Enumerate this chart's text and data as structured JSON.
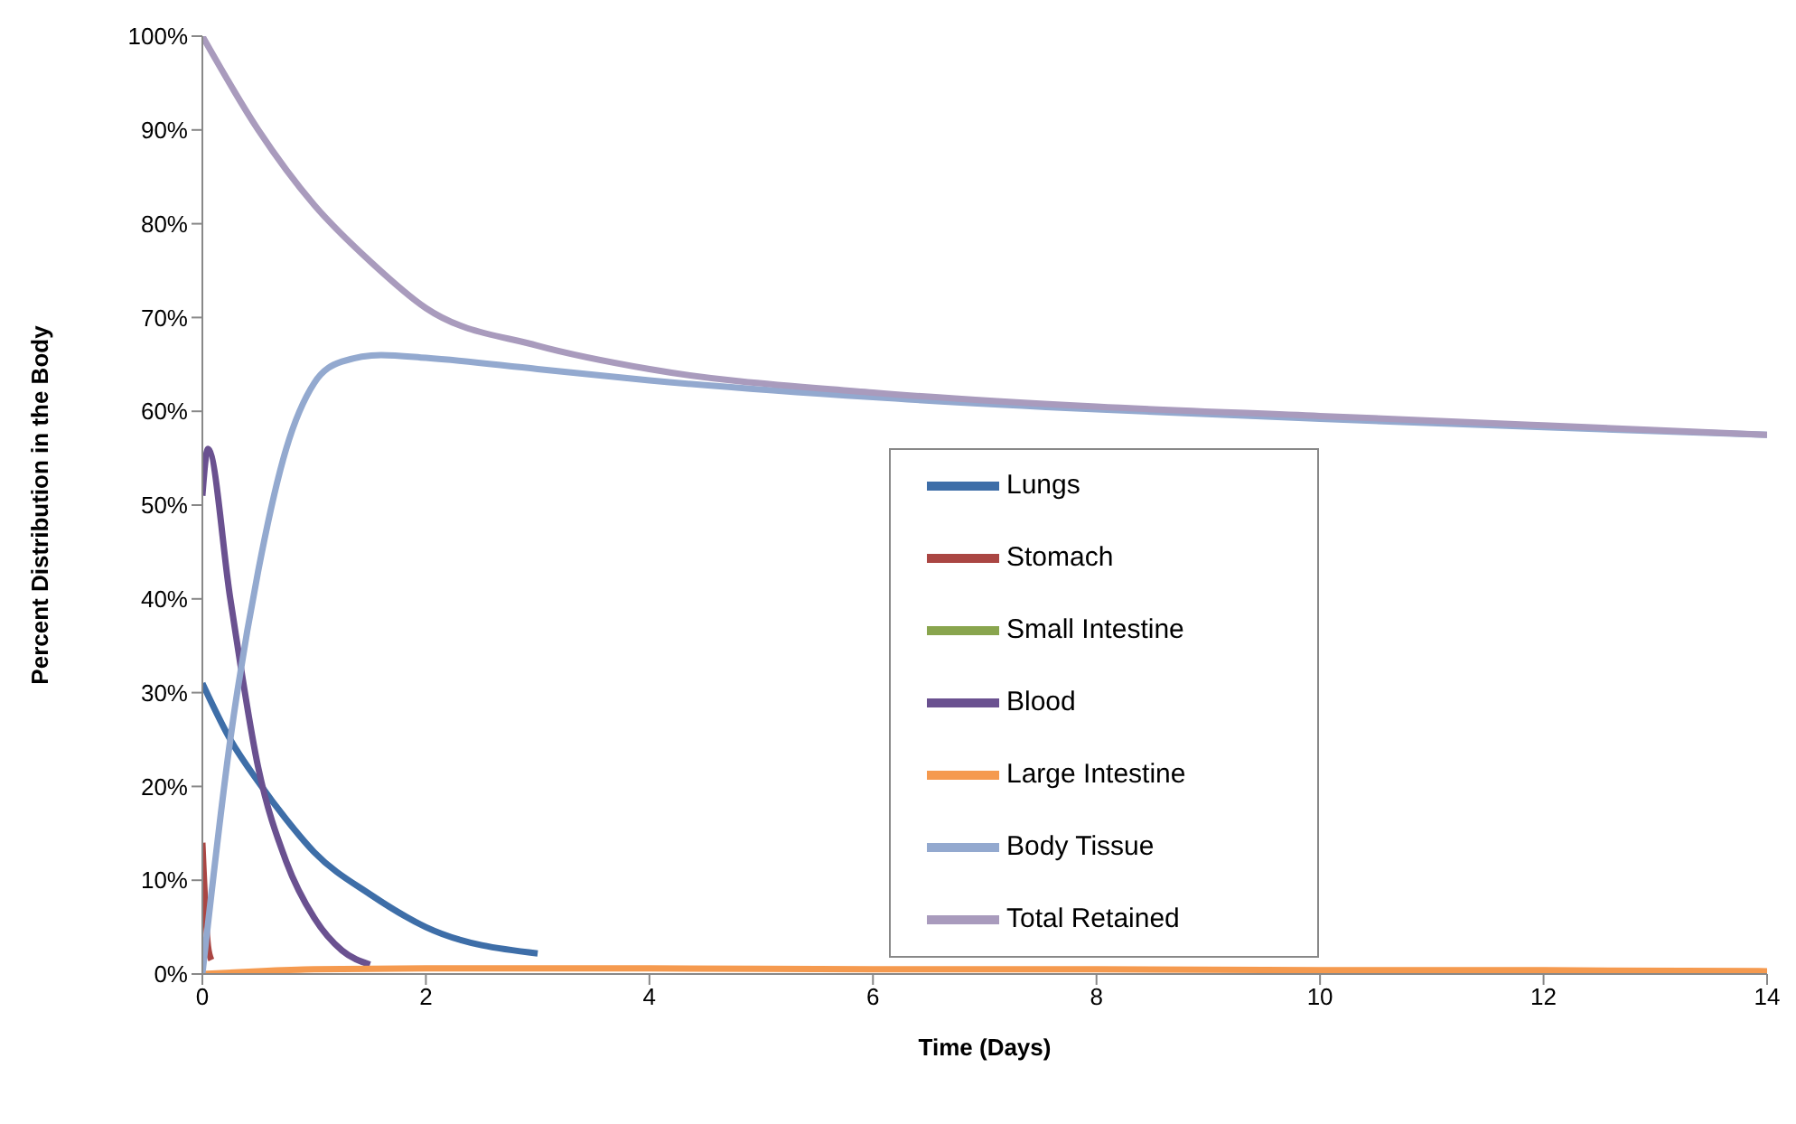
{
  "chart_data": {
    "type": "line",
    "xlabel": "Time (Days)",
    "ylabel": "Percent Distribution in the Body",
    "xlim": [
      0,
      14
    ],
    "xticks": [
      0,
      2,
      4,
      6,
      8,
      10,
      12,
      14
    ],
    "ylim": [
      0,
      100
    ],
    "yticks": [
      {
        "value": 0,
        "label": "0%"
      },
      {
        "value": 10,
        "label": "10%"
      },
      {
        "value": 20,
        "label": "20%"
      },
      {
        "value": 30,
        "label": "30%"
      },
      {
        "value": 40,
        "label": "40%"
      },
      {
        "value": 50,
        "label": "50%"
      },
      {
        "value": 60,
        "label": "60%"
      },
      {
        "value": 70,
        "label": "70%"
      },
      {
        "value": 80,
        "label": "80%"
      },
      {
        "value": 90,
        "label": "90%"
      },
      {
        "value": 100,
        "label": "100%"
      }
    ],
    "legend": "bottom right",
    "marker": "none",
    "line_style": "solid",
    "series": [
      {
        "name": "Lungs",
        "color": "#3e6ea8",
        "x": [
          0,
          0.25,
          0.5,
          0.75,
          1,
          1.5,
          2,
          3
        ],
        "values": [
          31,
          25,
          20.5,
          16.5,
          13,
          8.5,
          5,
          2.2
        ]
      },
      {
        "name": "Stomach",
        "color": "#aa4643",
        "x": [
          0,
          0.05,
          0.08
        ],
        "values": [
          14,
          3,
          1.5
        ]
      },
      {
        "name": "Small Intestine",
        "color": "#89a54e"
      },
      {
        "name": "Blood",
        "color": "#6a5190",
        "x": [
          0,
          0.05,
          0.25,
          0.5,
          0.75,
          1,
          1.25,
          1.5
        ],
        "values": [
          51,
          56,
          40,
          22,
          12,
          6,
          2.5,
          1
        ]
      },
      {
        "name": "Large Intestine",
        "color": "#f59a4f",
        "x": [
          0,
          0.5,
          1,
          2,
          4,
          6,
          8,
          10,
          12,
          14
        ],
        "values": [
          0,
          0.3,
          0.5,
          0.6,
          0.6,
          0.5,
          0.5,
          0.4,
          0.4,
          0.3
        ]
      },
      {
        "name": "Body Tissue",
        "color": "#93a9cf",
        "x": [
          0,
          0.25,
          0.5,
          0.75,
          1,
          1.25,
          1.6,
          2,
          3,
          4,
          6,
          8,
          10,
          12,
          14
        ],
        "values": [
          0,
          25,
          43,
          56,
          63,
          65.3,
          66,
          65.7,
          64.5,
          63.3,
          61.5,
          60.2,
          59.2,
          58.3,
          57.5
        ]
      },
      {
        "name": "Total Retained",
        "color": "#a99bbd",
        "x": [
          0,
          0.5,
          1,
          1.5,
          2,
          3,
          4,
          6,
          8,
          10,
          12,
          14
        ],
        "values": [
          100,
          90,
          82,
          76,
          71,
          67,
          64.5,
          62,
          60.5,
          59.5,
          58.5,
          57.5
        ]
      }
    ]
  }
}
